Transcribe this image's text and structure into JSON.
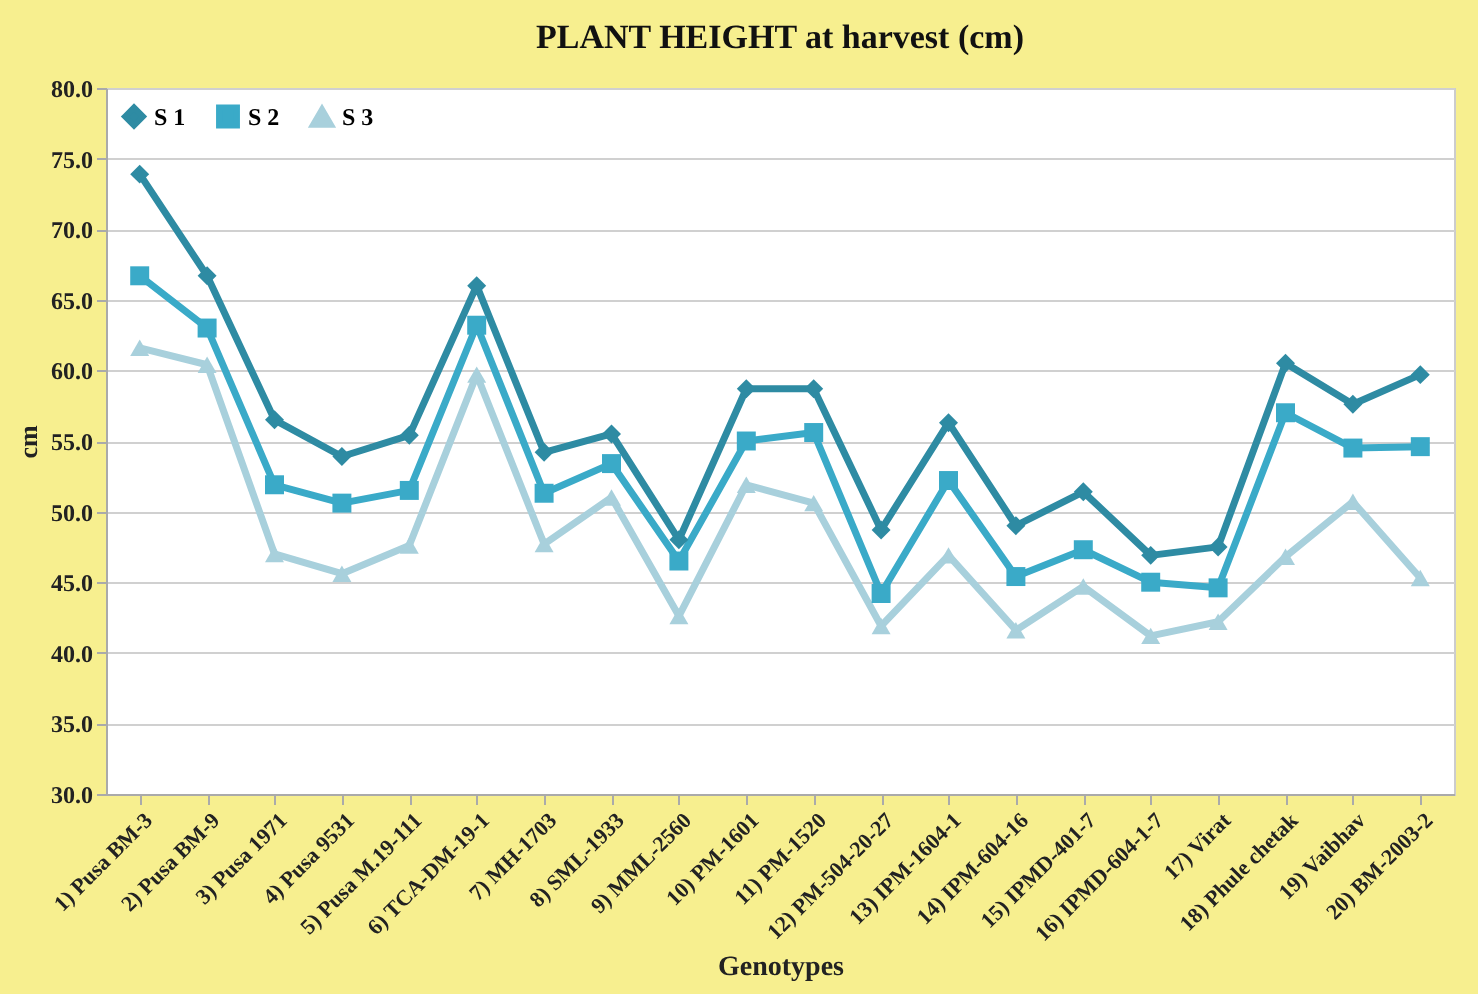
{
  "chart_data": {
    "type": "line",
    "title": "PLANT HEIGHT at harvest (cm)",
    "xlabel": "Genotypes",
    "ylabel": "cm",
    "categories": [
      "1) Pusa BM-3",
      "2) Pusa BM-9",
      "3) Pusa 1971",
      "4) Pusa 9531",
      "5) Pusa M.19-111",
      "6) TCA-DM-19-1",
      "7) MH-1703",
      "8) SML-1933",
      "9) MML-2560",
      "10) PM-1601",
      "11) PM-1520",
      "12) PM-504-20-27",
      "13) IPM-1604-1",
      "14) IPM-604-16",
      "15) IPMD-401-7",
      "16) IPMD-604-1-7",
      "17) Virat",
      "18) Phule chetak",
      "19) Vaibhav",
      "20) BM-2003-2"
    ],
    "series": [
      {
        "name": "S 1",
        "color": "#2e8ba3",
        "marker": "diamond",
        "values": [
          73.9,
          66.7,
          56.5,
          53.9,
          55.4,
          66.0,
          54.2,
          55.5,
          48.0,
          58.7,
          58.7,
          48.7,
          56.3,
          49.0,
          51.4,
          46.9,
          47.5,
          60.5,
          57.6,
          59.7
        ]
      },
      {
        "name": "S 2",
        "color": "#3aaac8",
        "marker": "square",
        "values": [
          66.7,
          63.0,
          51.9,
          50.6,
          51.5,
          63.2,
          51.3,
          53.4,
          46.5,
          55.0,
          55.6,
          44.2,
          52.2,
          45.4,
          47.3,
          45.0,
          44.6,
          57.0,
          54.5,
          54.6
        ]
      },
      {
        "name": "S 3",
        "color": "#a8d0dc",
        "marker": "triangle",
        "values": [
          61.6,
          60.4,
          47.0,
          45.6,
          47.6,
          59.7,
          47.7,
          51.0,
          42.6,
          51.9,
          50.6,
          41.9,
          46.9,
          41.6,
          44.7,
          41.2,
          42.2,
          46.8,
          50.7,
          45.3
        ]
      }
    ],
    "ylim": [
      30,
      80
    ],
    "yticks": [
      {
        "value": 30,
        "label": "30.0"
      },
      {
        "value": 35,
        "label": "35.0"
      },
      {
        "value": 40,
        "label": "40.0"
      },
      {
        "value": 45,
        "label": "45.0"
      },
      {
        "value": 50,
        "label": "50.0"
      },
      {
        "value": 55,
        "label": "55.0"
      },
      {
        "value": 60,
        "label": "60.0"
      },
      {
        "value": 65,
        "label": "65.0"
      },
      {
        "value": 70,
        "label": "70.0"
      },
      {
        "value": 75,
        "label": "75.0"
      },
      {
        "value": 80,
        "label": "80.0"
      }
    ],
    "grid": "y",
    "legend": "top left",
    "line_style": "solid"
  }
}
